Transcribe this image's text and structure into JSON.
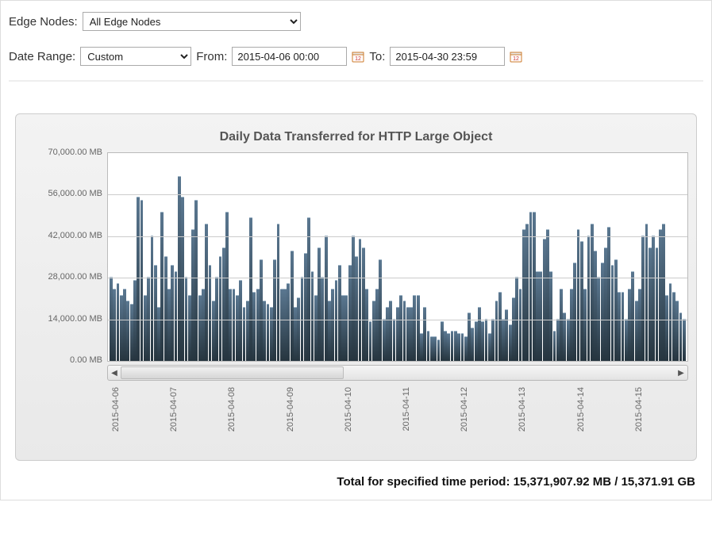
{
  "filters": {
    "edge_nodes_label": "Edge Nodes:",
    "edge_nodes_value": "All Edge Nodes",
    "date_range_label": "Date Range:",
    "date_range_value": "Custom",
    "from_label": "From:",
    "from_value": "2015-04-06 00:00",
    "to_label": "To:",
    "to_value": "2015-04-30 23:59"
  },
  "chart": {
    "title": "Daily Data Transferred for HTTP Large Object",
    "type": "bar",
    "y_label_suffix": " MB",
    "ylim": [
      0,
      70000
    ],
    "yticks": [
      0,
      14000,
      28000,
      42000,
      56000,
      70000
    ],
    "ytick_labels": [
      "0.00 MB",
      "14,000.00 MB",
      "28,000.00 MB",
      "42,000.00 MB",
      "56,000.00 MB",
      "70,000.00 MB"
    ],
    "tick_fontsize": 11,
    "tick_color": "#666666",
    "grid_color": "#cccccc",
    "plot_background": "#ffffff",
    "card_background": "#ececec",
    "bar_color_top": "#5a7790",
    "bar_color_bottom": "#26353f",
    "x_dates": [
      "2015-04-06",
      "2015-04-07",
      "2015-04-08",
      "2015-04-09",
      "2015-04-10",
      "2015-04-11",
      "2015-04-12",
      "2015-04-13",
      "2015-04-14",
      "2015-04-15"
    ],
    "values": [
      28000,
      24000,
      26000,
      22000,
      24000,
      20000,
      19000,
      27000,
      55000,
      54000,
      22000,
      28000,
      42000,
      32000,
      18000,
      50000,
      35000,
      24000,
      32000,
      30000,
      62000,
      55000,
      28000,
      22000,
      44000,
      54000,
      22000,
      24000,
      46000,
      32000,
      20000,
      28000,
      35000,
      38000,
      50000,
      24000,
      24000,
      22000,
      27000,
      18000,
      20000,
      48000,
      23000,
      24000,
      34000,
      20000,
      19000,
      18000,
      34000,
      46000,
      24000,
      24000,
      26000,
      37000,
      18000,
      21000,
      28000,
      36000,
      48000,
      30000,
      22000,
      38000,
      28000,
      42000,
      20000,
      24000,
      27000,
      32000,
      22000,
      22000,
      32000,
      42000,
      35000,
      41000,
      38000,
      24000,
      13000,
      20000,
      24000,
      34000,
      14000,
      18000,
      20000,
      14000,
      18000,
      22000,
      20000,
      18000,
      18000,
      22000,
      22000,
      9000,
      18000,
      10000,
      8000,
      8000,
      7000,
      13000,
      10000,
      9000,
      10000,
      10000,
      9000,
      9000,
      8000,
      16000,
      11000,
      13000,
      18000,
      13000,
      14000,
      9000,
      14000,
      20000,
      23000,
      14000,
      17000,
      12000,
      21000,
      28000,
      24000,
      44000,
      46000,
      50000,
      50000,
      30000,
      30000,
      41000,
      44000,
      30000,
      10000,
      14000,
      24000,
      16000,
      14000,
      24000,
      33000,
      44000,
      40000,
      24000,
      42000,
      46000,
      37000,
      28000,
      33000,
      38000,
      45000,
      32000,
      34000,
      23000,
      23000,
      14000,
      24000,
      30000,
      20000,
      24000,
      42000,
      46000,
      38000,
      42000,
      38000,
      44000,
      46000,
      22000,
      26000,
      23000,
      20000,
      16000,
      14000
    ],
    "scroll": {
      "thumb_start_pct": 0,
      "thumb_width_pct": 40
    }
  },
  "total": {
    "label": "Total for specified time period:",
    "mb": "15,371,907.92 MB",
    "gb": "15,371.91 GB"
  }
}
